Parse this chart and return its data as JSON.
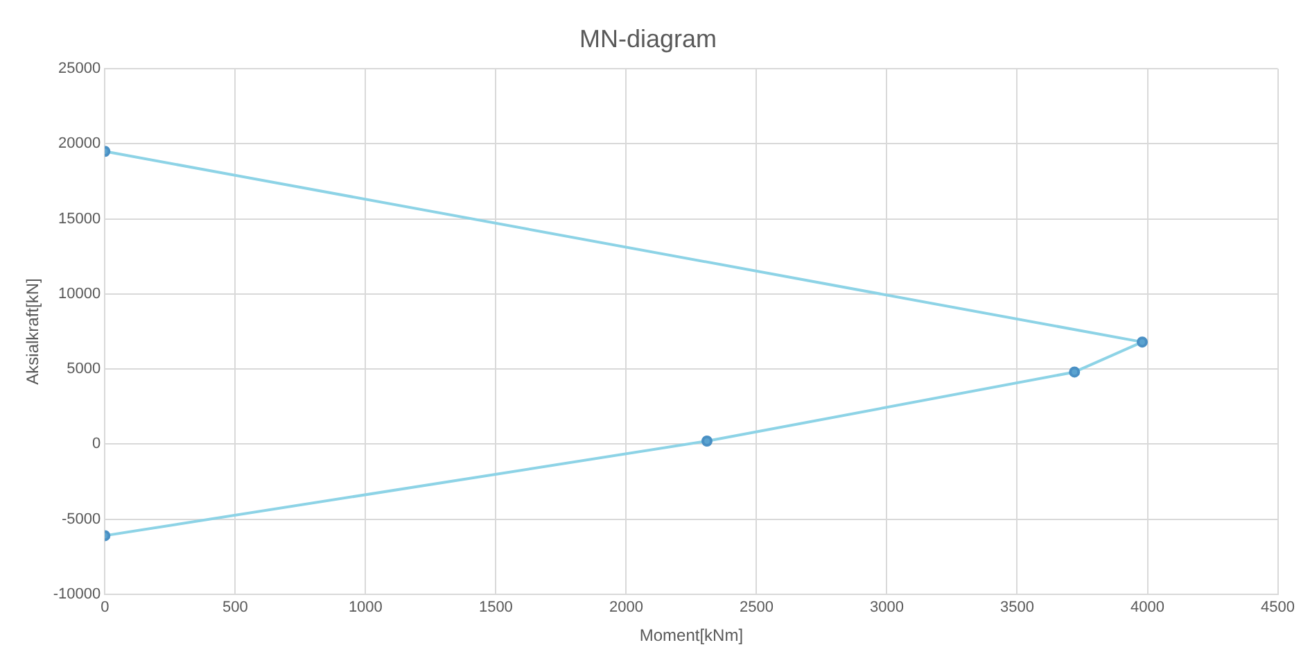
{
  "chart_data": {
    "type": "line",
    "title": "MN-diagram",
    "xlabel": "Moment[kNm]",
    "ylabel": "Aksialkraft[kN]",
    "series": [
      {
        "color": "#8dd3e6",
        "x": [
          0,
          3980,
          3720,
          2310,
          0
        ],
        "values": [
          19500,
          6800,
          4800,
          200,
          -6100
        ]
      }
    ],
    "xlim": [
      0,
      4500
    ],
    "xticks": [
      0,
      500,
      1000,
      1500,
      2000,
      2500,
      3000,
      3500,
      4000,
      4500
    ],
    "ylim": [
      -10000,
      25000
    ],
    "yticks": [
      -10000,
      -5000,
      0,
      5000,
      10000,
      15000,
      20000,
      25000
    ],
    "grid": true,
    "marker": "circle",
    "line_style": "solid"
  }
}
